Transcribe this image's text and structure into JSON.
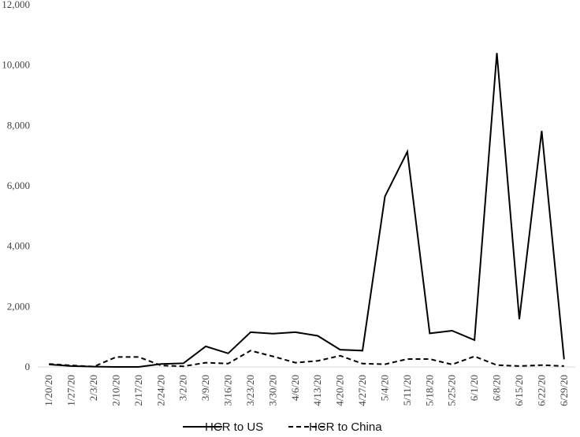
{
  "chart_data": {
    "type": "line",
    "title": "",
    "xlabel": "",
    "ylabel": "",
    "ylim": [
      0,
      12000
    ],
    "yticks": [
      "12,000",
      "10,000",
      "8,000",
      "6,000",
      "4,000",
      "2,000",
      "0"
    ],
    "ytick_values": [
      12000,
      10000,
      8000,
      6000,
      4000,
      2000,
      0
    ],
    "categories": [
      "1/20/20",
      "1/27/20",
      "2/3/20",
      "2/10/20",
      "2/17/20",
      "2/24/20",
      "3/2/20",
      "3/9/20",
      "3/16/20",
      "3/23/20",
      "3/30/20",
      "4/6/20",
      "4/13/20",
      "4/20/20",
      "4/27/20",
      "5/4/20",
      "5/11/20",
      "5/18/20",
      "5/25/20",
      "6/1/20",
      "6/8/20",
      "6/15/20",
      "6/22/20",
      "6/29/20"
    ],
    "grid": false,
    "legend_position": "bottom",
    "series": [
      {
        "name": "HCR to US",
        "style": "solid",
        "color": "#000000",
        "values": [
          80,
          30,
          10,
          0,
          0,
          100,
          120,
          680,
          450,
          1150,
          1100,
          1150,
          1030,
          570,
          540,
          5650,
          7130,
          1110,
          1200,
          890,
          10400,
          1580,
          7820,
          250
        ]
      },
      {
        "name": "HCR to China",
        "style": "dashed",
        "color": "#000000",
        "values": [
          100,
          50,
          10,
          330,
          330,
          50,
          20,
          140,
          110,
          540,
          350,
          140,
          200,
          370,
          110,
          90,
          260,
          260,
          80,
          350,
          60,
          30,
          60,
          30
        ]
      }
    ]
  }
}
